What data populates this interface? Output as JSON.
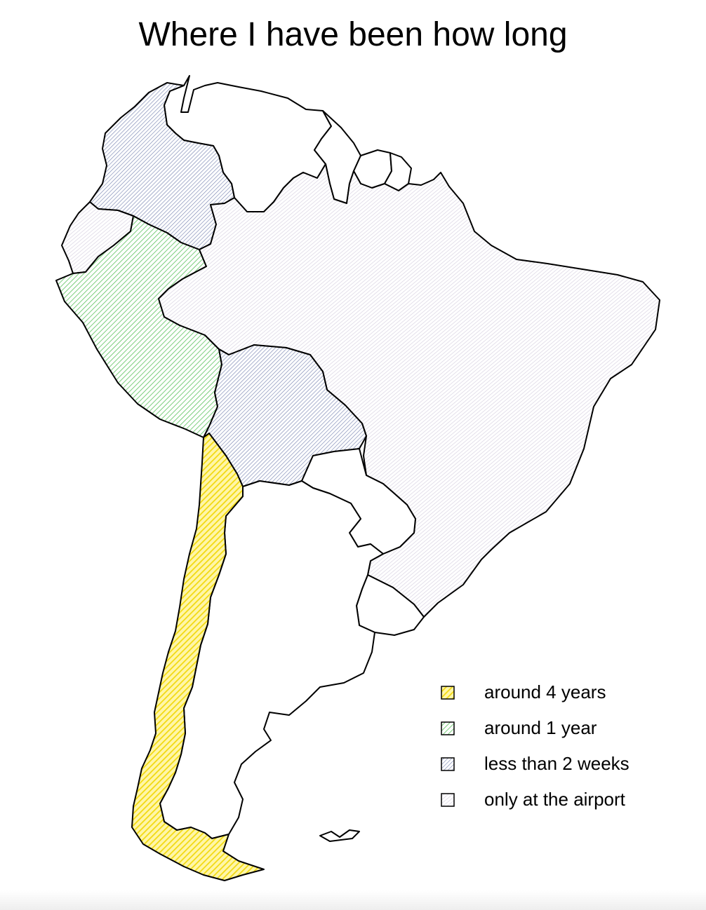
{
  "map": {
    "title": "Where I have been how long",
    "colors": {
      "around_4_years": "#f7e02a",
      "around_1_year": "#5bc25d",
      "less_than_2_weeks": "#7b87b3",
      "only_at_airport": "#d9d3e2",
      "outline": "#000000"
    },
    "regions": [
      {
        "name": "Colombia",
        "category": "less than 2 weeks"
      },
      {
        "name": "Ecuador",
        "category": "only at the airport"
      },
      {
        "name": "Peru",
        "category": "around 1 year"
      },
      {
        "name": "Bolivia",
        "category": "less than 2 weeks"
      },
      {
        "name": "Brazil",
        "category": "only at the airport"
      },
      {
        "name": "Chile",
        "category": "around 4 years"
      },
      {
        "name": "Venezuela",
        "category": "none"
      },
      {
        "name": "Guyana",
        "category": "none"
      },
      {
        "name": "Suriname",
        "category": "none"
      },
      {
        "name": "French Guiana",
        "category": "none"
      },
      {
        "name": "Paraguay",
        "category": "none"
      },
      {
        "name": "Uruguay",
        "category": "none"
      },
      {
        "name": "Argentina",
        "category": "none"
      }
    ],
    "legend": [
      {
        "label": "around 4 years",
        "color": "#f7e02a"
      },
      {
        "label": "around 1 year",
        "color": "#5bc25d"
      },
      {
        "label": "less than 2 weeks",
        "color": "#7b87b3"
      },
      {
        "label": "only at the airport",
        "color": "#d9d3e2"
      }
    ]
  }
}
